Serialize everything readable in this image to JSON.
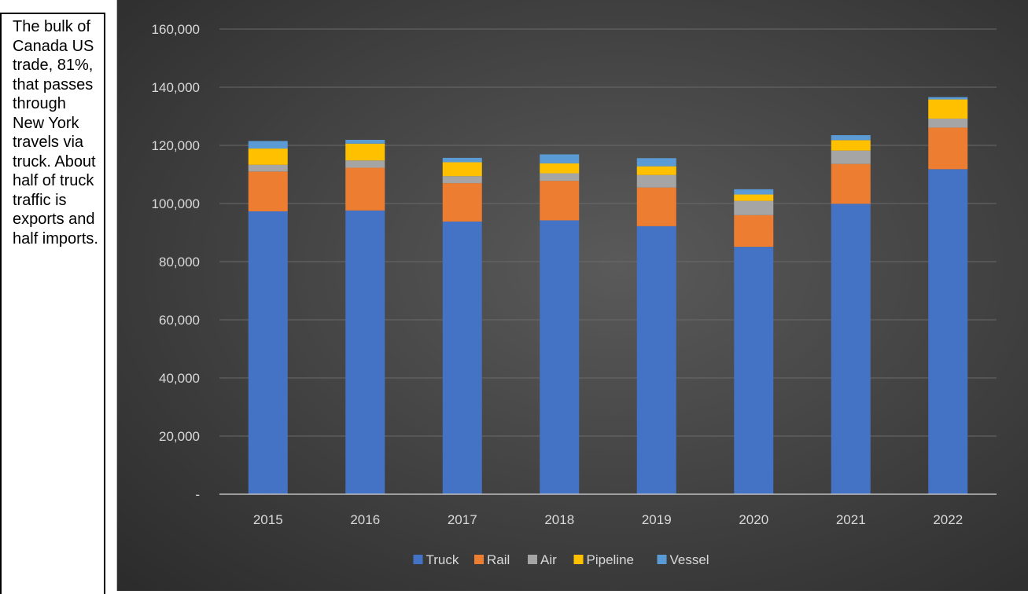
{
  "left_text": "The bulk of Canada US trade, 81%, that passes through New York travels via truck. About half of truck traffic is exports and half imports.",
  "chart_data": {
    "type": "bar",
    "stacked": true,
    "categories": [
      "2015",
      "2016",
      "2017",
      "2018",
      "2019",
      "2020",
      "2021",
      "2022"
    ],
    "series": [
      {
        "name": "Truck",
        "color": "#4472c4",
        "values": [
          97300,
          97600,
          93800,
          94200,
          92200,
          85100,
          99900,
          111800
        ]
      },
      {
        "name": "Rail",
        "color": "#ed7d31",
        "values": [
          13700,
          14700,
          13200,
          13600,
          13300,
          10900,
          13700,
          14300
        ]
      },
      {
        "name": "Air",
        "color": "#a5a5a5",
        "values": [
          2300,
          2500,
          2400,
          2600,
          4300,
          4900,
          4600,
          3100
        ]
      },
      {
        "name": "Pipeline",
        "color": "#ffc000",
        "values": [
          5600,
          5800,
          4800,
          3400,
          3000,
          2200,
          3600,
          6600
        ]
      },
      {
        "name": "Vessel",
        "color": "#5b9bd5",
        "values": [
          2600,
          1300,
          1500,
          3100,
          2800,
          1800,
          1700,
          800
        ]
      }
    ],
    "yticks": [
      "-",
      "20,000",
      "40,000",
      "60,000",
      "80,000",
      "100,000",
      "120,000",
      "140,000",
      "160,000"
    ],
    "ylim": [
      0,
      160000
    ],
    "grid": true,
    "legend_position": "bottom",
    "title": "",
    "xlabel": "",
    "ylabel": ""
  }
}
